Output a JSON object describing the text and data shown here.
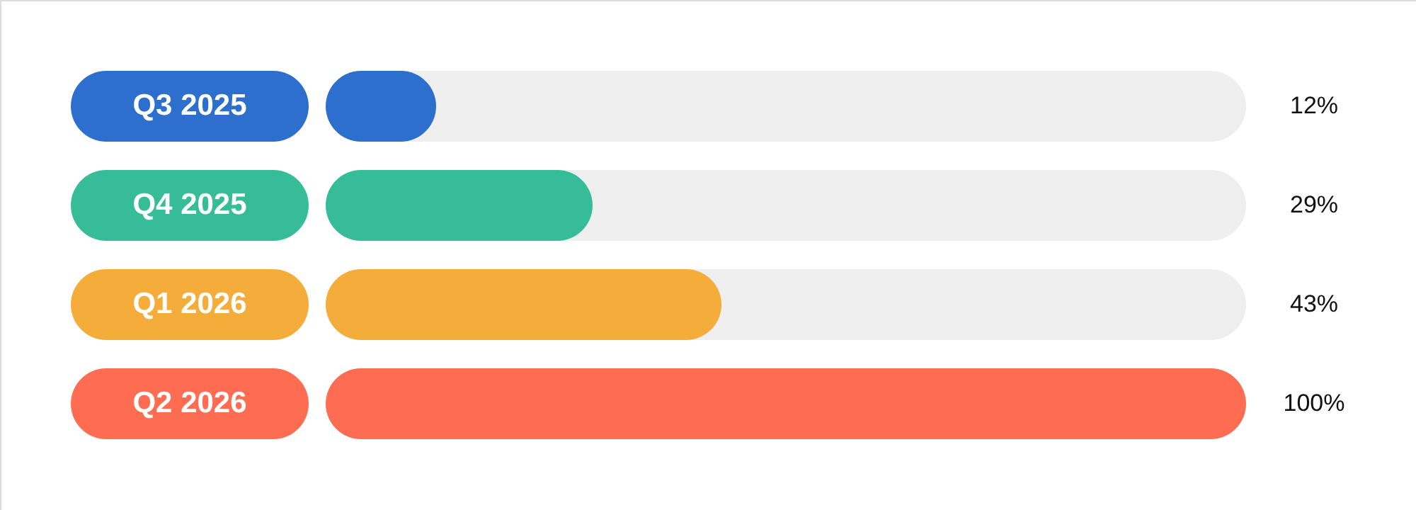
{
  "chart_data": {
    "type": "bar",
    "orientation": "horizontal",
    "categories": [
      "Q3 2025",
      "Q4 2025",
      "Q1 2026",
      "Q2 2026"
    ],
    "values": [
      12,
      29,
      43,
      100
    ],
    "colors": [
      "#2d6fcc",
      "#36bd98",
      "#f4ad3b",
      "#fe6d51"
    ],
    "value_labels": [
      "12%",
      "29%",
      "43%",
      "100%"
    ],
    "xlim": [
      0,
      100
    ]
  }
}
